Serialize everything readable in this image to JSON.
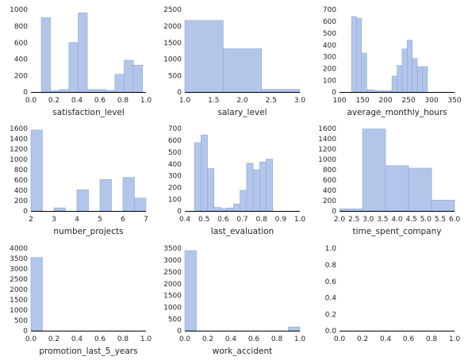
{
  "style": {
    "bar_fill": "#b3c6ea",
    "bar_edge": "#8fa6d4",
    "spine": "#000000",
    "background": "#ffffff"
  },
  "chart_data": [
    {
      "type": "histogram",
      "xlabel": "satisfaction_level",
      "xlim": [
        0.0,
        1.0
      ],
      "ylim": [
        0,
        1000
      ],
      "x_ticks": [
        0.0,
        0.2,
        0.4,
        0.6,
        0.8,
        1.0
      ],
      "x_tick_labels": [
        "0.0",
        "0.2",
        "0.4",
        "0.6",
        "0.8",
        "1.0"
      ],
      "y_ticks": [
        0,
        200,
        400,
        600,
        800,
        1000
      ],
      "y_tick_labels": [
        "0",
        "200",
        "400",
        "600",
        "800",
        "1000"
      ],
      "bins": [
        {
          "x0": 0.09,
          "x1": 0.17,
          "count": 900
        },
        {
          "x0": 0.17,
          "x1": 0.25,
          "count": 15
        },
        {
          "x0": 0.25,
          "x1": 0.33,
          "count": 30
        },
        {
          "x0": 0.33,
          "x1": 0.41,
          "count": 600
        },
        {
          "x0": 0.41,
          "x1": 0.49,
          "count": 960
        },
        {
          "x0": 0.49,
          "x1": 0.57,
          "count": 30
        },
        {
          "x0": 0.57,
          "x1": 0.65,
          "count": 30
        },
        {
          "x0": 0.65,
          "x1": 0.73,
          "count": 20
        },
        {
          "x0": 0.73,
          "x1": 0.81,
          "count": 215
        },
        {
          "x0": 0.81,
          "x1": 0.89,
          "count": 385
        },
        {
          "x0": 0.89,
          "x1": 0.97,
          "count": 325
        }
      ]
    },
    {
      "type": "histogram",
      "xlabel": "salary_level",
      "xlim": [
        1.0,
        3.0
      ],
      "ylim": [
        0,
        2500
      ],
      "x_ticks": [
        1.0,
        1.5,
        2.0,
        2.5,
        3.0
      ],
      "x_tick_labels": [
        "1.0",
        "1.5",
        "2.0",
        "2.5",
        "3.0"
      ],
      "y_ticks": [
        0,
        500,
        1000,
        1500,
        2000,
        2500
      ],
      "y_tick_labels": [
        "0",
        "500",
        "1000",
        "1500",
        "2000",
        "2500"
      ],
      "bins": [
        {
          "x0": 1.0,
          "x1": 1.667,
          "count": 2170
        },
        {
          "x0": 1.667,
          "x1": 2.333,
          "count": 1310
        },
        {
          "x0": 2.333,
          "x1": 3.0,
          "count": 80
        }
      ]
    },
    {
      "type": "histogram",
      "xlabel": "average_monthly_hours",
      "xlim": [
        100,
        350
      ],
      "ylim": [
        0,
        700
      ],
      "x_ticks": [
        100,
        150,
        200,
        250,
        300,
        350
      ],
      "x_tick_labels": [
        "100",
        "150",
        "200",
        "250",
        "300",
        "350"
      ],
      "y_ticks": [
        0,
        100,
        200,
        300,
        400,
        500,
        600,
        700
      ],
      "y_tick_labels": [
        "0",
        "100",
        "200",
        "300",
        "400",
        "500",
        "600",
        "700"
      ],
      "bins": [
        {
          "x0": 126,
          "x1": 137,
          "count": 640
        },
        {
          "x0": 137,
          "x1": 148,
          "count": 625
        },
        {
          "x0": 148,
          "x1": 159,
          "count": 330
        },
        {
          "x0": 159,
          "x1": 170,
          "count": 20
        },
        {
          "x0": 170,
          "x1": 181,
          "count": 15
        },
        {
          "x0": 181,
          "x1": 192,
          "count": 10
        },
        {
          "x0": 192,
          "x1": 203,
          "count": 10
        },
        {
          "x0": 203,
          "x1": 214,
          "count": 10
        },
        {
          "x0": 214,
          "x1": 225,
          "count": 135
        },
        {
          "x0": 225,
          "x1": 236,
          "count": 225
        },
        {
          "x0": 236,
          "x1": 247,
          "count": 365
        },
        {
          "x0": 247,
          "x1": 258,
          "count": 440
        },
        {
          "x0": 258,
          "x1": 269,
          "count": 285
        },
        {
          "x0": 269,
          "x1": 280,
          "count": 215
        },
        {
          "x0": 280,
          "x1": 291,
          "count": 215
        }
      ]
    },
    {
      "type": "histogram",
      "xlabel": "number_projects",
      "xlim": [
        2,
        7
      ],
      "ylim": [
        0,
        1600
      ],
      "x_ticks": [
        2,
        3,
        4,
        5,
        6,
        7
      ],
      "x_tick_labels": [
        "2",
        "3",
        "4",
        "5",
        "6",
        "7"
      ],
      "y_ticks": [
        0,
        200,
        400,
        600,
        800,
        1000,
        1200,
        1400,
        1600
      ],
      "y_tick_labels": [
        "0",
        "200",
        "400",
        "600",
        "800",
        "1000",
        "1200",
        "1400",
        "1600"
      ],
      "bins": [
        {
          "x0": 2.0,
          "x1": 2.5,
          "count": 1570
        },
        {
          "x0": 3.0,
          "x1": 3.5,
          "count": 60
        },
        {
          "x0": 4.0,
          "x1": 4.5,
          "count": 410
        },
        {
          "x0": 5.0,
          "x1": 5.5,
          "count": 610
        },
        {
          "x0": 6.0,
          "x1": 6.5,
          "count": 650
        },
        {
          "x0": 6.5,
          "x1": 7.0,
          "count": 250
        }
      ]
    },
    {
      "type": "histogram",
      "xlabel": "last_evaluation",
      "xlim": [
        0.4,
        1.0
      ],
      "ylim": [
        0,
        700
      ],
      "x_ticks": [
        0.4,
        0.5,
        0.6,
        0.7,
        0.8,
        0.9,
        1.0
      ],
      "x_tick_labels": [
        "0.4",
        "0.5",
        "0.6",
        "0.7",
        "0.8",
        "0.9",
        "1.0"
      ],
      "y_ticks": [
        0,
        100,
        200,
        300,
        400,
        500,
        600,
        700
      ],
      "y_tick_labels": [
        "0",
        "100",
        "200",
        "300",
        "400",
        "500",
        "600",
        "700"
      ],
      "bins": [
        {
          "x0": 0.45,
          "x1": 0.484,
          "count": 580
        },
        {
          "x0": 0.484,
          "x1": 0.518,
          "count": 645
        },
        {
          "x0": 0.518,
          "x1": 0.552,
          "count": 360
        },
        {
          "x0": 0.552,
          "x1": 0.586,
          "count": 30
        },
        {
          "x0": 0.586,
          "x1": 0.62,
          "count": 20
        },
        {
          "x0": 0.62,
          "x1": 0.654,
          "count": 25
        },
        {
          "x0": 0.654,
          "x1": 0.688,
          "count": 60
        },
        {
          "x0": 0.688,
          "x1": 0.722,
          "count": 175
        },
        {
          "x0": 0.722,
          "x1": 0.756,
          "count": 405
        },
        {
          "x0": 0.756,
          "x1": 0.79,
          "count": 350
        },
        {
          "x0": 0.79,
          "x1": 0.824,
          "count": 415
        },
        {
          "x0": 0.824,
          "x1": 0.858,
          "count": 440
        }
      ]
    },
    {
      "type": "histogram",
      "xlabel": "time_spent_company",
      "xlim": [
        2.0,
        6.0
      ],
      "ylim": [
        0,
        1600
      ],
      "x_ticks": [
        2.0,
        2.5,
        3.0,
        3.5,
        4.0,
        4.5,
        5.0,
        5.5,
        6.0
      ],
      "x_tick_labels": [
        "2.0",
        "2.5",
        "3.0",
        "3.5",
        "4.0",
        "4.5",
        "5.0",
        "5.5",
        "6.0"
      ],
      "y_ticks": [
        0,
        200,
        400,
        600,
        800,
        1000,
        1200,
        1400,
        1600
      ],
      "y_tick_labels": [
        "0",
        "200",
        "400",
        "600",
        "800",
        "1000",
        "1200",
        "1400",
        "1600"
      ],
      "bins": [
        {
          "x0": 2.0,
          "x1": 2.8,
          "count": 40
        },
        {
          "x0": 2.8,
          "x1": 3.6,
          "count": 1590
        },
        {
          "x0": 3.6,
          "x1": 4.4,
          "count": 880
        },
        {
          "x0": 4.4,
          "x1": 5.2,
          "count": 830
        },
        {
          "x0": 5.2,
          "x1": 6.0,
          "count": 210
        }
      ]
    },
    {
      "type": "histogram",
      "xlabel": "promotion_last_5_years",
      "xlim": [
        0.0,
        1.0
      ],
      "ylim": [
        0,
        4000
      ],
      "x_ticks": [
        0.0,
        0.2,
        0.4,
        0.6,
        0.8,
        1.0
      ],
      "x_tick_labels": [
        "0.0",
        "0.2",
        "0.4",
        "0.6",
        "0.8",
        "1.0"
      ],
      "y_ticks": [
        0,
        500,
        1000,
        1500,
        2000,
        2500,
        3000,
        3500,
        4000
      ],
      "y_tick_labels": [
        "0",
        "500",
        "1000",
        "1500",
        "2000",
        "2500",
        "3000",
        "3500",
        "4000"
      ],
      "bins": [
        {
          "x0": 0.0,
          "x1": 0.1,
          "count": 3550
        }
      ]
    },
    {
      "type": "histogram",
      "xlabel": "work_accident",
      "xlim": [
        0.0,
        1.0
      ],
      "ylim": [
        0,
        3500
      ],
      "x_ticks": [
        0.0,
        0.2,
        0.4,
        0.6,
        0.8,
        1.0
      ],
      "x_tick_labels": [
        "0.0",
        "0.2",
        "0.4",
        "0.6",
        "0.8",
        "1.0"
      ],
      "y_ticks": [
        0,
        500,
        1000,
        1500,
        2000,
        2500,
        3000,
        3500
      ],
      "y_tick_labels": [
        "0",
        "500",
        "1000",
        "1500",
        "2000",
        "2500",
        "3000",
        "3500"
      ],
      "bins": [
        {
          "x0": 0.0,
          "x1": 0.1,
          "count": 3400
        },
        {
          "x0": 0.9,
          "x1": 1.0,
          "count": 160
        }
      ]
    },
    {
      "type": "empty",
      "xlabel": "",
      "xlim": [
        0.0,
        1.0
      ],
      "ylim": [
        0.0,
        1.0
      ],
      "x_ticks": [
        0.0,
        0.2,
        0.4,
        0.6,
        0.8,
        1.0
      ],
      "x_tick_labels": [
        "0.0",
        "0.2",
        "0.4",
        "0.6",
        "0.8",
        "1.0"
      ],
      "y_ticks": [
        0.0,
        0.2,
        0.4,
        0.6,
        0.8,
        1.0
      ],
      "y_tick_labels": [
        "0.0",
        "0.2",
        "0.4",
        "0.6",
        "0.8",
        "1.0"
      ],
      "bins": []
    }
  ]
}
